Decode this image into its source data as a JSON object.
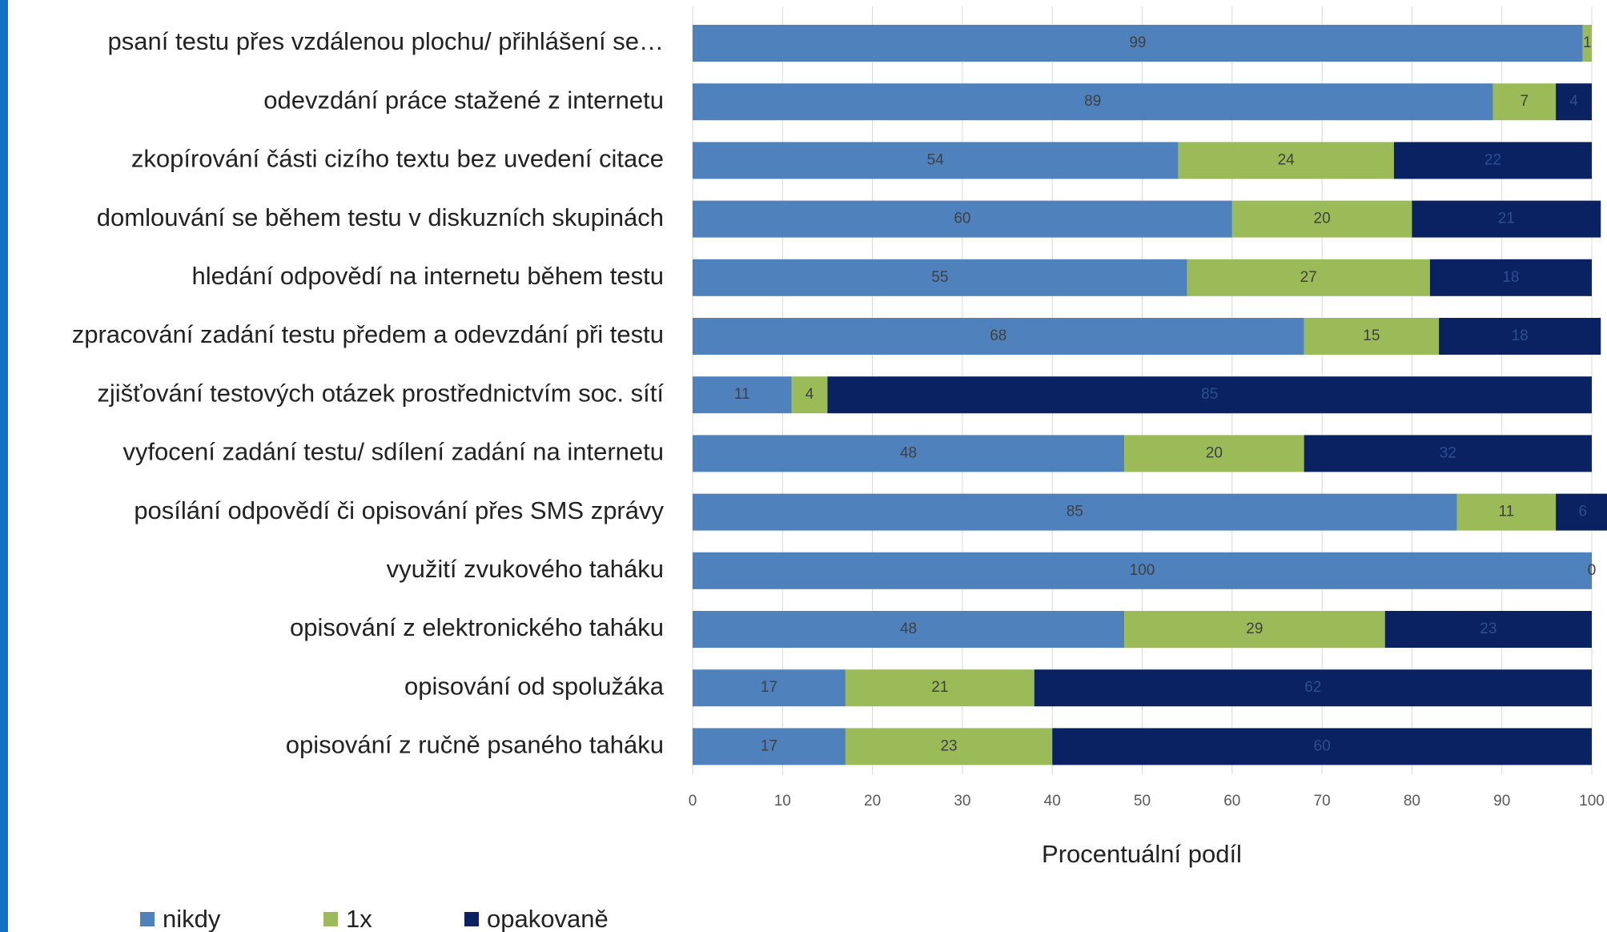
{
  "chart_data": {
    "type": "stacked_barh",
    "categories": [
      "psaní testu přes vzdálenou plochu/ přihlášení se…",
      "odevzdání práce stažené z internetu",
      "zkopírování části cizího textu bez uvedení citace",
      "domlouvání se během testu v diskuzních skupinách",
      "hledání odpovědí na internetu během testu",
      "zpracování zadání testu předem a odevzdání při testu",
      "zjišťování testových otázek prostřednictvím soc. sítí",
      "vyfocení zadání testu/ sdílení zadání na internetu",
      "posílání odpovědí či opisování přes SMS zprávy",
      "využití zvukového taháku",
      "opisování z elektronického taháku",
      "opisování od spolužáka",
      "opisování z ručně psaného taháku"
    ],
    "series": [
      {
        "name": "nikdy",
        "color": "#4f81bd",
        "values": [
          99,
          89,
          54,
          60,
          55,
          68,
          11,
          48,
          85,
          100,
          48,
          17,
          17
        ]
      },
      {
        "name": "1x",
        "color": "#9bbb59",
        "values": [
          1,
          7,
          24,
          20,
          27,
          15,
          4,
          20,
          11,
          0,
          29,
          21,
          23
        ]
      },
      {
        "name": "opakovaně",
        "color": "#0a2262",
        "values": [
          null,
          4,
          22,
          21,
          18,
          18,
          85,
          32,
          6,
          null,
          23,
          62,
          60
        ]
      }
    ],
    "xlabel": "Procentuální podíl",
    "xlim": [
      0,
      100
    ],
    "xticks": [
      0,
      10,
      20,
      30,
      40,
      50,
      60,
      70,
      80,
      90,
      100
    ],
    "grid": true,
    "legend": "bottom-left"
  }
}
